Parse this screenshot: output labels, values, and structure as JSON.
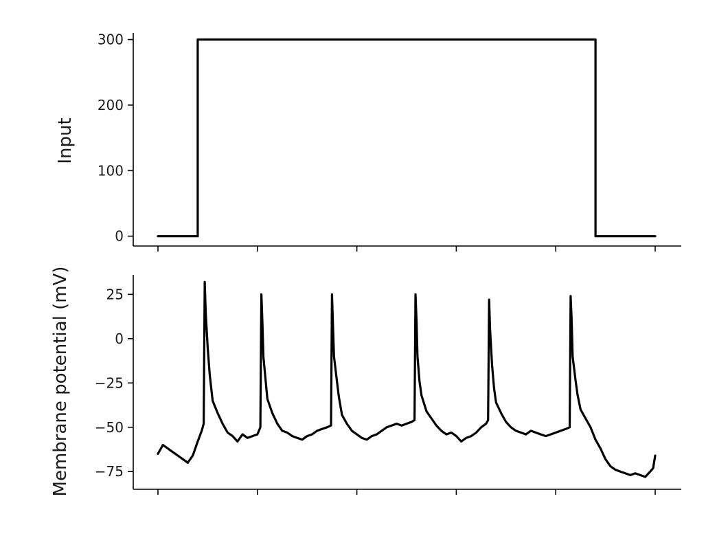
{
  "chart_data": [
    {
      "type": "line",
      "panel": "input",
      "title": "",
      "xlabel": "",
      "ylabel": "Input",
      "xlim": [
        0,
        5
      ],
      "ylim": [
        -15,
        310
      ],
      "yticks": [
        0,
        100,
        200,
        300
      ],
      "ytick_labels": [
        "0",
        "100",
        "200",
        "300"
      ],
      "xticks": [
        0,
        1,
        2,
        3,
        4,
        5
      ],
      "grid": false,
      "series": [
        {
          "x": [
            0,
            0.4,
            0.4,
            4.4,
            4.4,
            5.0
          ],
          "y": [
            0,
            0,
            300,
            300,
            0,
            0
          ]
        }
      ]
    },
    {
      "type": "line",
      "panel": "membrane",
      "title": "",
      "xlabel": "",
      "ylabel": "Membrane potential (mV)",
      "xlim": [
        0,
        5
      ],
      "ylim": [
        -85,
        36
      ],
      "yticks": [
        -75,
        -50,
        -25,
        0,
        25
      ],
      "ytick_labels": [
        "−75",
        "−50",
        "−25",
        "0",
        "25"
      ],
      "xticks": [
        0,
        1,
        2,
        3,
        4,
        5
      ],
      "grid": false,
      "series": [
        {
          "x": [
            0.0,
            0.05,
            0.1,
            0.15,
            0.2,
            0.25,
            0.3,
            0.35,
            0.4,
            0.44,
            0.46,
            0.47,
            0.48,
            0.5,
            0.52,
            0.55,
            0.6,
            0.65,
            0.7,
            0.75,
            0.8,
            0.85,
            0.9,
            0.95,
            1.0,
            1.03,
            1.04,
            1.05,
            1.06,
            1.08,
            1.1,
            1.15,
            1.2,
            1.25,
            1.3,
            1.35,
            1.4,
            1.45,
            1.5,
            1.55,
            1.6,
            1.65,
            1.7,
            1.74,
            1.75,
            1.76,
            1.77,
            1.8,
            1.82,
            1.85,
            1.9,
            1.95,
            2.0,
            2.05,
            2.1,
            2.15,
            2.2,
            2.25,
            2.3,
            2.35,
            2.4,
            2.45,
            2.5,
            2.55,
            2.58,
            2.59,
            2.6,
            2.61,
            2.63,
            2.65,
            2.7,
            2.75,
            2.8,
            2.85,
            2.9,
            2.95,
            3.0,
            3.05,
            3.1,
            3.15,
            3.2,
            3.25,
            3.3,
            3.32,
            3.33,
            3.34,
            3.36,
            3.38,
            3.4,
            3.45,
            3.5,
            3.55,
            3.6,
            3.65,
            3.7,
            3.75,
            3.8,
            3.85,
            3.9,
            3.95,
            4.0,
            4.05,
            4.1,
            4.14,
            4.15,
            4.16,
            4.17,
            4.2,
            4.22,
            4.25,
            4.3,
            4.35,
            4.4,
            4.45,
            4.5,
            4.55,
            4.6,
            4.65,
            4.7,
            4.75,
            4.8,
            4.85,
            4.9,
            4.95,
            4.98,
            5.0
          ],
          "y": [
            -65,
            -60,
            -62,
            -64,
            -66,
            -68,
            -70,
            -66,
            -58,
            -52,
            -48,
            32,
            15,
            -5,
            -20,
            -35,
            -42,
            -48,
            -53,
            -55,
            -58,
            -54,
            -56,
            -55,
            -54,
            -50,
            25,
            10,
            -10,
            -22,
            -34,
            -42,
            -48,
            -52,
            -53,
            -55,
            -56,
            -57,
            -55,
            -54,
            -52,
            -51,
            -50,
            -49,
            25,
            8,
            -10,
            -24,
            -33,
            -43,
            -48,
            -52,
            -54,
            -56,
            -57,
            -55,
            -54,
            -52,
            -50,
            -49,
            -48,
            -49,
            -48,
            -47,
            -46,
            25,
            10,
            -10,
            -24,
            -32,
            -41,
            -45,
            -49,
            -52,
            -54,
            -53,
            -55,
            -58,
            -56,
            -55,
            -53,
            -50,
            -48,
            -46,
            22,
            5,
            -15,
            -28,
            -36,
            -42,
            -47,
            -50,
            -52,
            -53,
            -54,
            -52,
            -53,
            -54,
            -55,
            -54,
            -53,
            -52,
            -51,
            -50,
            24,
            10,
            -10,
            -24,
            -32,
            -40,
            -45,
            -50,
            -57,
            -62,
            -68,
            -72,
            -74,
            -75,
            -76,
            -77,
            -76,
            -77,
            -78,
            -75,
            -73,
            -66
          ]
        }
      ]
    }
  ]
}
